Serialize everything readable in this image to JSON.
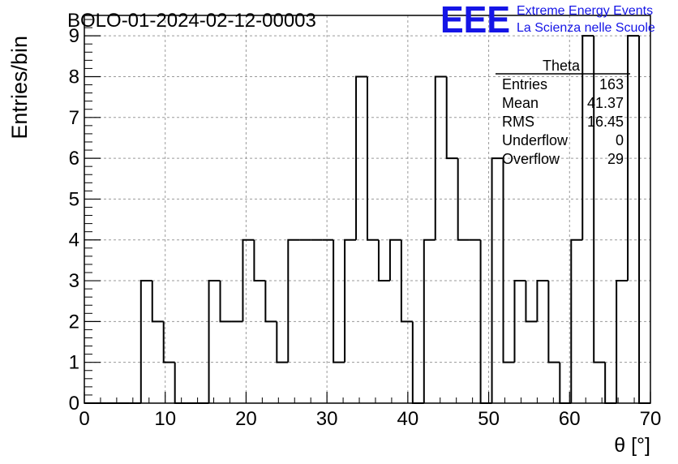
{
  "chart_data": {
    "type": "histogram",
    "title": "BOLO-01-2024-02-12-00003",
    "xlabel": "θ [°]",
    "ylabel": "Entries/bin",
    "xlim": [
      0,
      70
    ],
    "ylim": [
      0,
      9.5
    ],
    "x_ticks": [
      "0",
      "10",
      "20",
      "30",
      "40",
      "50",
      "60",
      "70"
    ],
    "y_ticks": [
      "0",
      "1",
      "2",
      "3",
      "4",
      "5",
      "6",
      "7",
      "8",
      "9"
    ],
    "grid": true,
    "bin_width": 1.4,
    "bin_edges_start": 0,
    "values": [
      0,
      0,
      0,
      0,
      0,
      3,
      2,
      1,
      0,
      0,
      0,
      3,
      2,
      2,
      4,
      3,
      2,
      1,
      4,
      4,
      4,
      4,
      1,
      4,
      8,
      4,
      3,
      4,
      2,
      0,
      4,
      8,
      6,
      4,
      4,
      0,
      6,
      1,
      3,
      2,
      3,
      1,
      0,
      4,
      9,
      1,
      0,
      3,
      9,
      0
    ],
    "stats_box": {
      "title": "Theta",
      "rows": [
        {
          "label": "Entries",
          "value": "163"
        },
        {
          "label": "Mean",
          "value": "41.37"
        },
        {
          "label": "RMS",
          "value": "16.45"
        },
        {
          "label": "Underflow",
          "value": "0"
        },
        {
          "label": "Overflow",
          "value": "29"
        }
      ]
    }
  },
  "logo": {
    "mark": "EEE",
    "line1": "Extreme Energy Events",
    "line2": "La Scienza nelle Scuole",
    "color": "#1515e6"
  }
}
